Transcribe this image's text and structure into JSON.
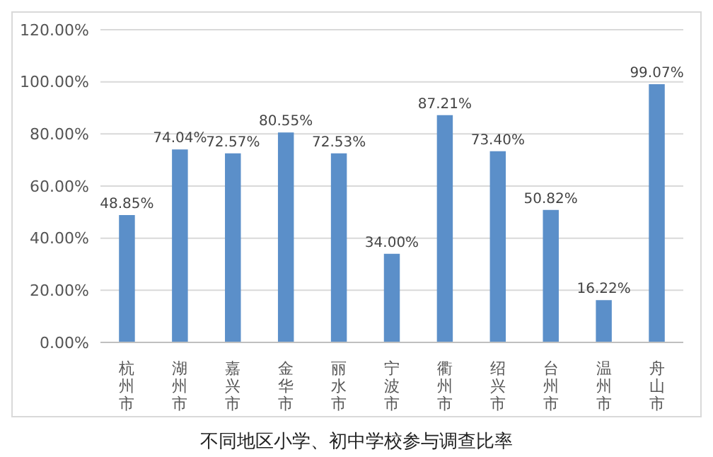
{
  "chart_data": {
    "type": "bar",
    "title": "不同地区小学、初中学校参与调查比率",
    "categories": [
      "杭州市",
      "湖州市",
      "嘉兴市",
      "金华市",
      "丽水市",
      "宁波市",
      "衢州市",
      "绍兴市",
      "台州市",
      "温州市",
      "舟山市"
    ],
    "values": [
      48.85,
      74.04,
      72.57,
      80.55,
      72.53,
      34.0,
      87.21,
      73.4,
      50.82,
      16.22,
      99.07
    ],
    "value_labels": [
      "48.85%",
      "74.04%",
      "72.57%",
      "80.55%",
      "72.53%",
      "34.00%",
      "87.21%",
      "73.40%",
      "50.82%",
      "16.22%",
      "99.07%"
    ],
    "color": "#5b8fc9",
    "ylim": [
      0,
      120
    ],
    "yticks": [
      {
        "value": 0,
        "label": "0.00%"
      },
      {
        "value": 20,
        "label": "20.00%"
      },
      {
        "value": 40,
        "label": "40.00%"
      },
      {
        "value": 60,
        "label": "60.00%"
      },
      {
        "value": 80,
        "label": "80.00%"
      },
      {
        "value": 100,
        "label": "100.00%"
      },
      {
        "value": 120,
        "label": "120.00%"
      }
    ],
    "grid": "y"
  }
}
